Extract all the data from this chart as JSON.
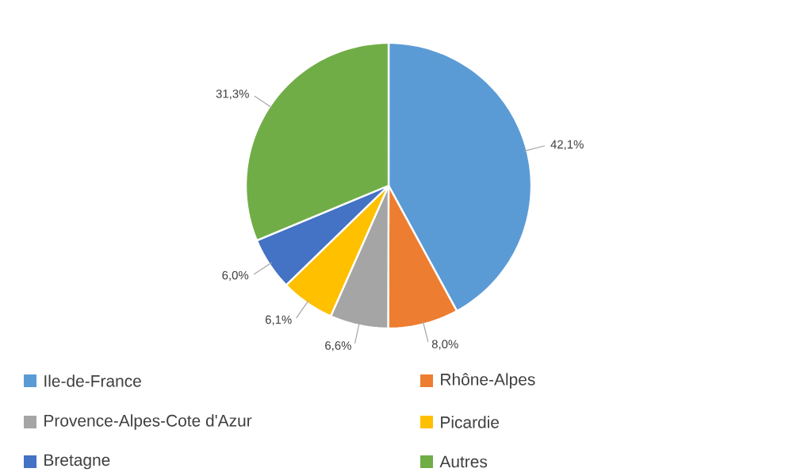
{
  "chart_data": {
    "type": "pie",
    "categories": [
      "Ile-de-France",
      "Rhône-Alpes",
      "Provence-Alpes-Cote d'Azur",
      "Picardie",
      "Bretagne",
      "Autres"
    ],
    "values": [
      42.1,
      8.0,
      6.6,
      6.1,
      6.0,
      31.3
    ],
    "value_labels": [
      "42,1%",
      "8,0%",
      "6,6%",
      "6,1%",
      "6,0%",
      "31,3%"
    ],
    "colors": [
      "#5b9bd5",
      "#ed7d31",
      "#a5a5a5",
      "#ffc000",
      "#4472c4",
      "#70ad47"
    ],
    "legend": "bottom"
  }
}
